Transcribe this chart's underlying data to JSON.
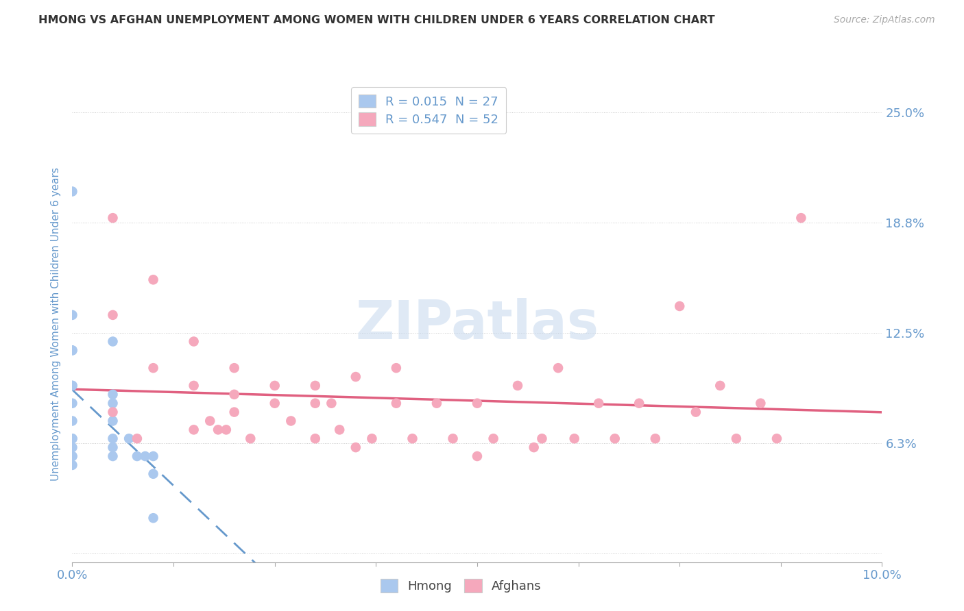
{
  "title": "HMONG VS AFGHAN UNEMPLOYMENT AMONG WOMEN WITH CHILDREN UNDER 6 YEARS CORRELATION CHART",
  "source": "Source: ZipAtlas.com",
  "ylabel": "Unemployment Among Women with Children Under 6 years",
  "background_color": "#ffffff",
  "watermark": "ZIPatlas",
  "hmong_color": "#aac8ee",
  "afghan_color": "#f5a8bc",
  "hmong_line_color": "#6699cc",
  "afghan_line_color": "#e06080",
  "axis_label_color": "#6699cc",
  "grid_color": "#cccccc",
  "xlim": [
    0.0,
    0.1
  ],
  "ylim": [
    -0.005,
    0.265
  ],
  "ytick_vals": [
    0.0,
    0.0625,
    0.125,
    0.1875,
    0.25
  ],
  "ytick_labels": [
    "",
    "6.3%",
    "12.5%",
    "18.8%",
    "25.0%"
  ],
  "xtick_vals": [
    0.0,
    0.0125,
    0.025,
    0.0375,
    0.05,
    0.0625,
    0.075,
    0.0875,
    0.1
  ],
  "xtick_label_vals": [
    0.0,
    0.1
  ],
  "xtick_label_strs": [
    "0.0%",
    "10.0%"
  ],
  "hmong_x": [
    0.0,
    0.0,
    0.0,
    0.0,
    0.0,
    0.0,
    0.0,
    0.0,
    0.0,
    0.0,
    0.0,
    0.0,
    0.0,
    0.0,
    0.005,
    0.005,
    0.005,
    0.005,
    0.005,
    0.005,
    0.005,
    0.007,
    0.008,
    0.009,
    0.01,
    0.01,
    0.01
  ],
  "hmong_y": [
    0.205,
    0.135,
    0.115,
    0.115,
    0.095,
    0.095,
    0.085,
    0.075,
    0.065,
    0.065,
    0.06,
    0.055,
    0.055,
    0.05,
    0.12,
    0.09,
    0.085,
    0.075,
    0.065,
    0.06,
    0.055,
    0.065,
    0.055,
    0.055,
    0.055,
    0.045,
    0.02
  ],
  "afghan_x": [
    0.005,
    0.005,
    0.005,
    0.008,
    0.01,
    0.01,
    0.015,
    0.015,
    0.015,
    0.017,
    0.018,
    0.019,
    0.02,
    0.02,
    0.02,
    0.022,
    0.025,
    0.025,
    0.027,
    0.03,
    0.03,
    0.03,
    0.032,
    0.033,
    0.035,
    0.035,
    0.037,
    0.04,
    0.04,
    0.042,
    0.045,
    0.047,
    0.05,
    0.05,
    0.052,
    0.055,
    0.057,
    0.058,
    0.06,
    0.062,
    0.065,
    0.067,
    0.07,
    0.072,
    0.075,
    0.077,
    0.08,
    0.082,
    0.085,
    0.087,
    0.09
  ],
  "afghan_y": [
    0.19,
    0.135,
    0.08,
    0.065,
    0.155,
    0.105,
    0.12,
    0.095,
    0.07,
    0.075,
    0.07,
    0.07,
    0.105,
    0.09,
    0.08,
    0.065,
    0.095,
    0.085,
    0.075,
    0.095,
    0.085,
    0.065,
    0.085,
    0.07,
    0.1,
    0.06,
    0.065,
    0.105,
    0.085,
    0.065,
    0.085,
    0.065,
    0.085,
    0.055,
    0.065,
    0.095,
    0.06,
    0.065,
    0.105,
    0.065,
    0.085,
    0.065,
    0.085,
    0.065,
    0.14,
    0.08,
    0.095,
    0.065,
    0.085,
    0.065,
    0.19
  ]
}
